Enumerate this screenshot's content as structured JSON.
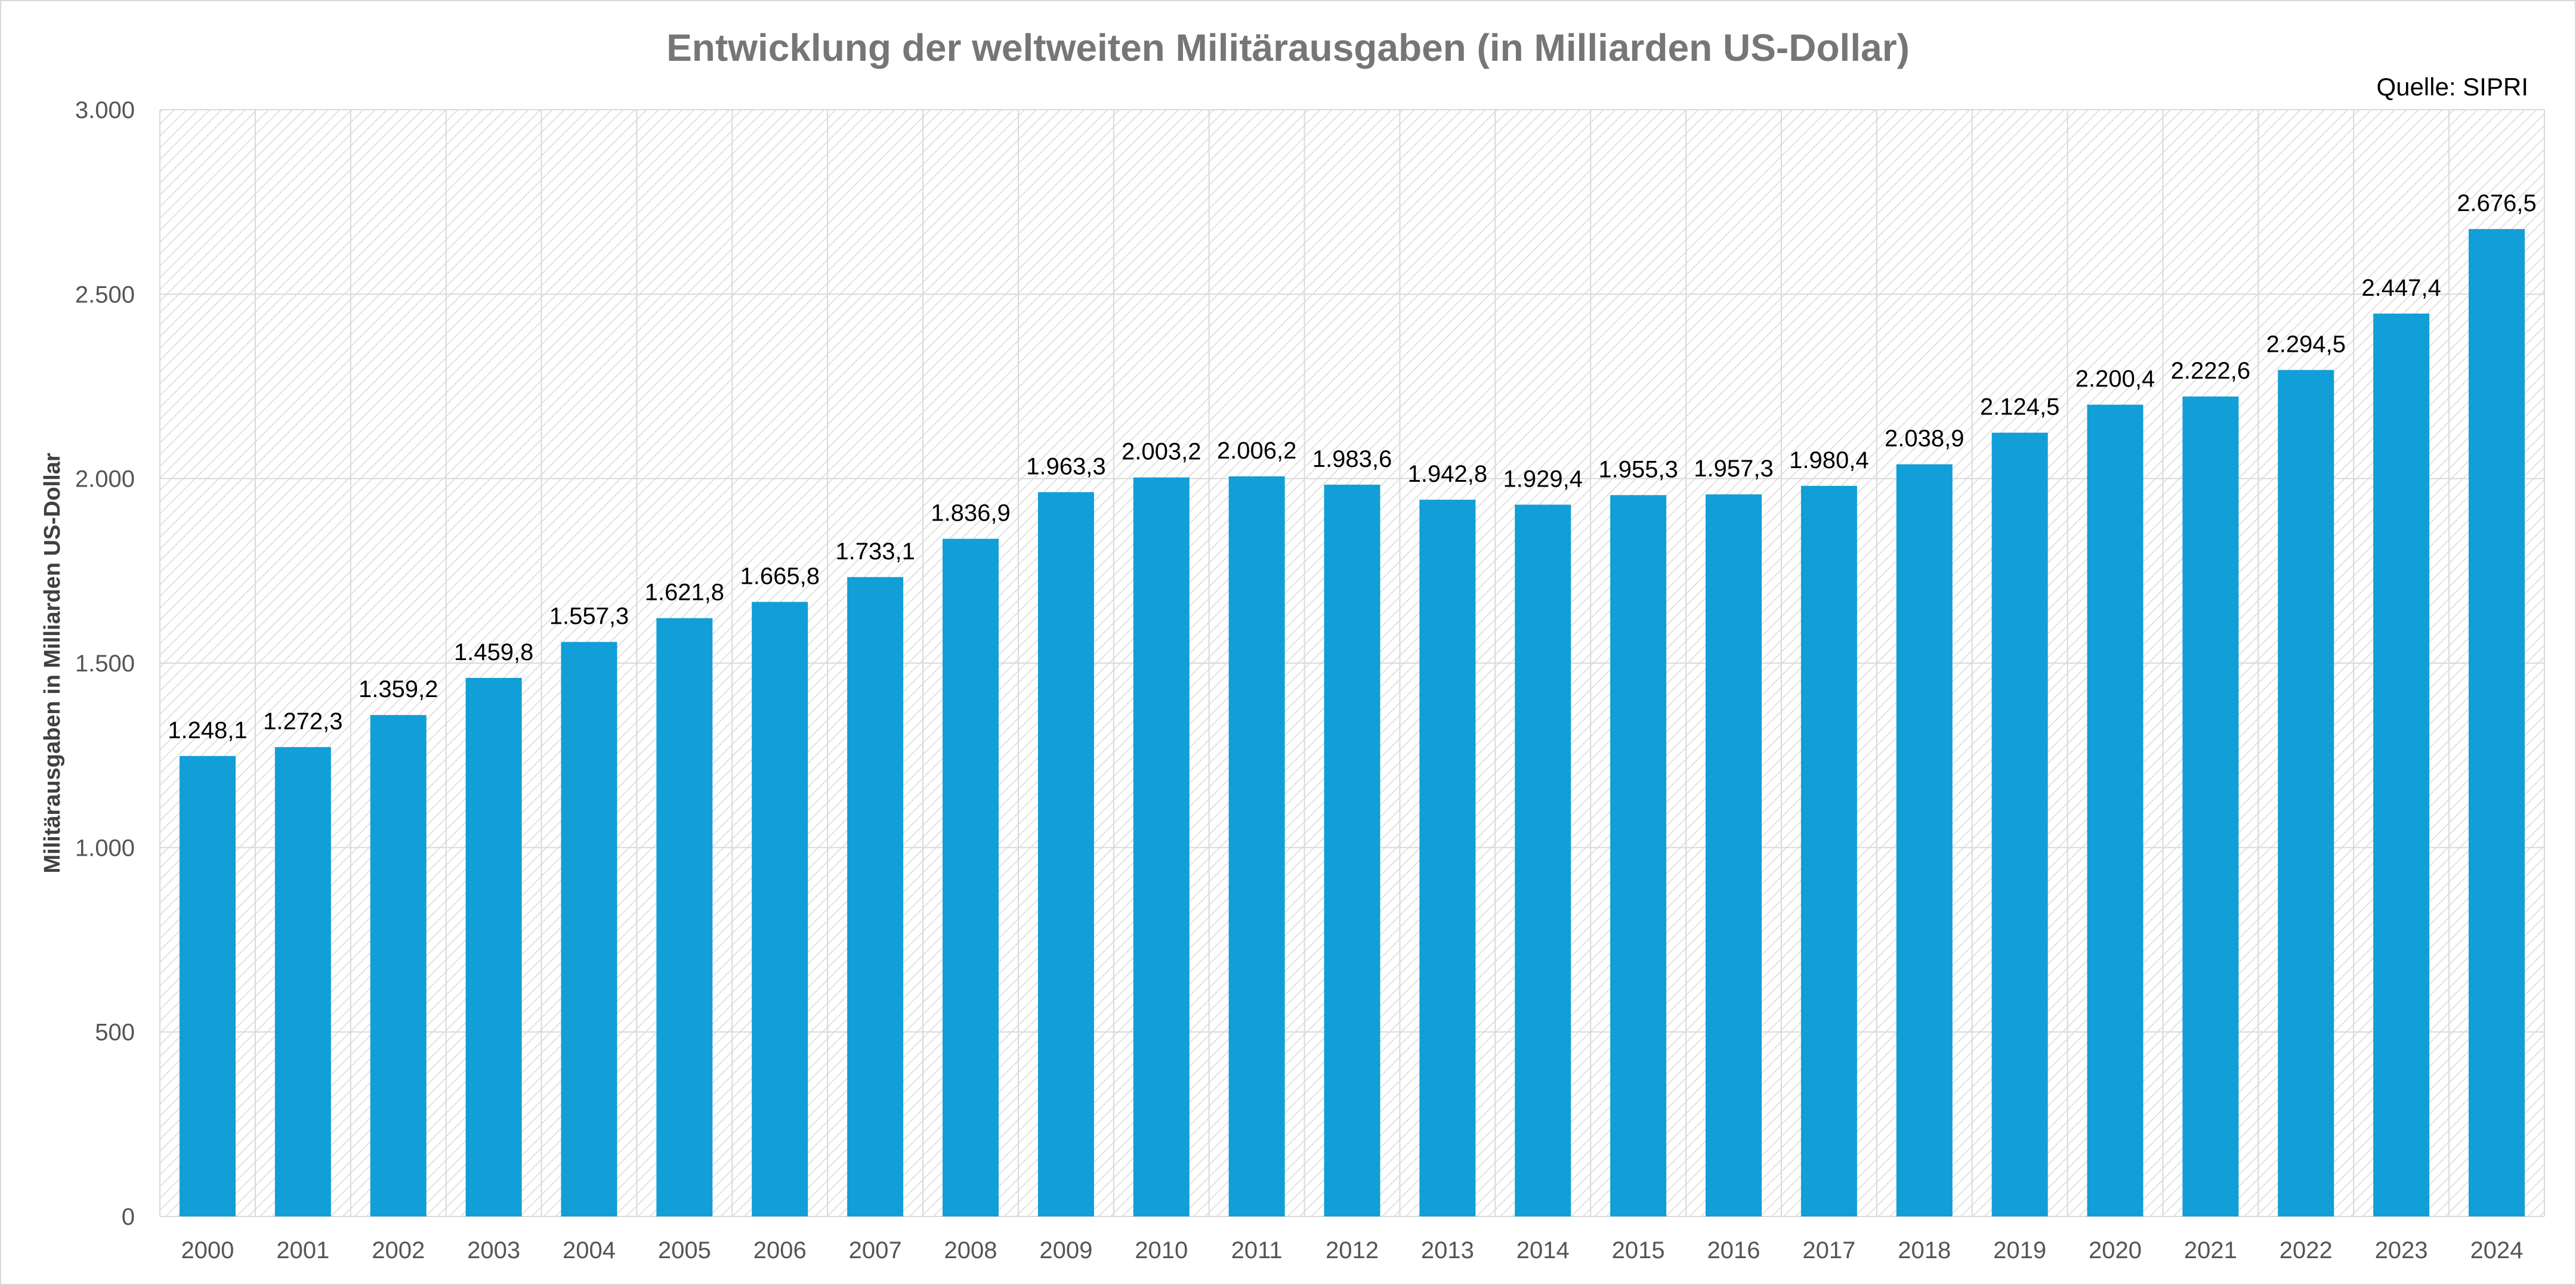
{
  "chart_data": {
    "type": "bar",
    "title": "Entwicklung der weltweiten Militärausgaben (in Milliarden US-Dollar)",
    "source": "Quelle: SIPRI",
    "xlabel": "",
    "ylabel": "Militärausgaben in Milliarden US-Dollar",
    "ylim": [
      0,
      3000
    ],
    "y_ticks": [
      0,
      500,
      1000,
      1500,
      2000,
      2500,
      3000
    ],
    "y_tick_labels": [
      "0",
      "500",
      "1.000",
      "1.500",
      "2.000",
      "2.500",
      "3.000"
    ],
    "grid": true,
    "legend": "none",
    "bar_color": "#129ed6",
    "categories": [
      "2000",
      "2001",
      "2002",
      "2003",
      "2004",
      "2005",
      "2006",
      "2007",
      "2008",
      "2009",
      "2010",
      "2011",
      "2012",
      "2013",
      "2014",
      "2015",
      "2016",
      "2017",
      "2018",
      "2019",
      "2020",
      "2021",
      "2022",
      "2023",
      "2024"
    ],
    "values": [
      1248.1,
      1272.3,
      1359.2,
      1459.8,
      1557.3,
      1621.8,
      1665.8,
      1733.1,
      1836.9,
      1963.3,
      2003.2,
      2006.2,
      1983.6,
      1942.8,
      1929.4,
      1955.3,
      1957.3,
      1980.4,
      2038.9,
      2124.5,
      2200.4,
      2222.6,
      2294.5,
      2447.4,
      2676.5
    ],
    "data_labels": [
      "1.248,1",
      "1.272,3",
      "1.359,2",
      "1.459,8",
      "1.557,3",
      "1.621,8",
      "1.665,8",
      "1.733,1",
      "1.836,9",
      "1.963,3",
      "2.003,2",
      "2.006,2",
      "1.983,6",
      "1.942,8",
      "1.929,4",
      "1.955,3",
      "1.957,3",
      "1.980,4",
      "2.038,9",
      "2.124,5",
      "2.200,4",
      "2.222,6",
      "2.294,5",
      "2.447,4",
      "2.676,5"
    ]
  }
}
